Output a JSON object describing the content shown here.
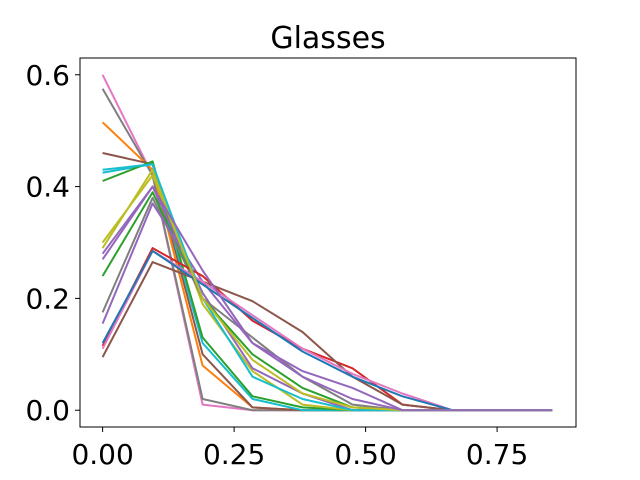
{
  "chart_data": {
    "type": "line",
    "title": "Glasses",
    "xlabel": "",
    "ylabel": "",
    "xlim": [
      -0.043,
      0.9
    ],
    "ylim": [
      -0.03,
      0.63
    ],
    "xticks": [
      0.0,
      0.25,
      0.5,
      0.75
    ],
    "xtick_labels": [
      "0.00",
      "0.25",
      "0.50",
      "0.75"
    ],
    "yticks": [
      0.0,
      0.2,
      0.4,
      0.6
    ],
    "ytick_labels": [
      "0.0",
      "0.2",
      "0.4",
      "0.6"
    ],
    "grid": false,
    "legend": "none",
    "x": [
      0.0,
      0.095,
      0.19,
      0.285,
      0.38,
      0.475,
      0.57,
      0.665,
      0.76,
      0.855
    ],
    "series": [
      {
        "color": "#e377c2",
        "values": [
          0.6,
          0.42,
          0.01,
          0.0,
          0.0,
          0.0,
          0.0,
          0.0,
          0.0,
          0.0
        ]
      },
      {
        "color": "#7f7f7f",
        "values": [
          0.575,
          0.42,
          0.02,
          0.0,
          0.0,
          0.0,
          0.0,
          0.0,
          0.0,
          0.0
        ]
      },
      {
        "color": "#ff7f0e",
        "values": [
          0.515,
          0.43,
          0.08,
          0.005,
          0.0,
          0.0,
          0.0,
          0.0,
          0.0,
          0.0
        ]
      },
      {
        "color": "#8c564b",
        "values": [
          0.46,
          0.44,
          0.1,
          0.005,
          0.0,
          0.0,
          0.0,
          0.0,
          0.0,
          0.0
        ]
      },
      {
        "color": "#17becf",
        "values": [
          0.425,
          0.44,
          0.12,
          0.02,
          0.0,
          0.0,
          0.0,
          0.0,
          0.0,
          0.0
        ]
      },
      {
        "color": "#2ca02c",
        "values": [
          0.41,
          0.445,
          0.13,
          0.025,
          0.005,
          0.0,
          0.0,
          0.0,
          0.0,
          0.0
        ]
      },
      {
        "color": "#bcbd22",
        "values": [
          0.29,
          0.43,
          0.19,
          0.07,
          0.01,
          0.0,
          0.0,
          0.0,
          0.0,
          0.0
        ]
      },
      {
        "color": "#9467bd",
        "values": [
          0.28,
          0.4,
          0.21,
          0.075,
          0.03,
          0.0,
          0.0,
          0.0,
          0.0,
          0.0
        ]
      },
      {
        "color": "#2ca02c",
        "values": [
          0.24,
          0.39,
          0.2,
          0.1,
          0.04,
          0.005,
          0.0,
          0.0,
          0.0,
          0.0
        ]
      },
      {
        "color": "#7f7f7f",
        "values": [
          0.175,
          0.38,
          0.2,
          0.13,
          0.06,
          0.01,
          0.0,
          0.0,
          0.0,
          0.0
        ]
      },
      {
        "color": "#9467bd",
        "values": [
          0.155,
          0.37,
          0.23,
          0.12,
          0.07,
          0.04,
          0.0,
          0.0,
          0.0,
          0.0
        ]
      },
      {
        "color": "#d62728",
        "values": [
          0.115,
          0.29,
          0.24,
          0.16,
          0.11,
          0.075,
          0.01,
          0.0,
          0.0,
          0.0
        ]
      },
      {
        "color": "#8c564b",
        "values": [
          0.095,
          0.265,
          0.23,
          0.195,
          0.14,
          0.06,
          0.01,
          0.0,
          0.0,
          0.0
        ]
      },
      {
        "color": "#e377c2",
        "values": [
          0.11,
          0.285,
          0.23,
          0.17,
          0.11,
          0.065,
          0.03,
          0.0,
          0.0,
          0.0
        ]
      },
      {
        "color": "#1f77b4",
        "values": [
          0.12,
          0.285,
          0.225,
          0.165,
          0.105,
          0.06,
          0.025,
          0.0,
          0.0,
          0.0
        ]
      },
      {
        "color": "#17becf",
        "values": [
          0.43,
          0.44,
          0.2,
          0.06,
          0.02,
          0.0,
          0.0,
          0.0,
          0.0,
          0.0
        ]
      },
      {
        "color": "#bcbd22",
        "values": [
          0.3,
          0.42,
          0.2,
          0.09,
          0.03,
          0.005,
          0.0,
          0.0,
          0.0,
          0.0
        ]
      },
      {
        "color": "#9467bd",
        "values": [
          0.27,
          0.4,
          0.25,
          0.12,
          0.06,
          0.02,
          0.0,
          0.0,
          0.0,
          0.0
        ]
      }
    ]
  }
}
